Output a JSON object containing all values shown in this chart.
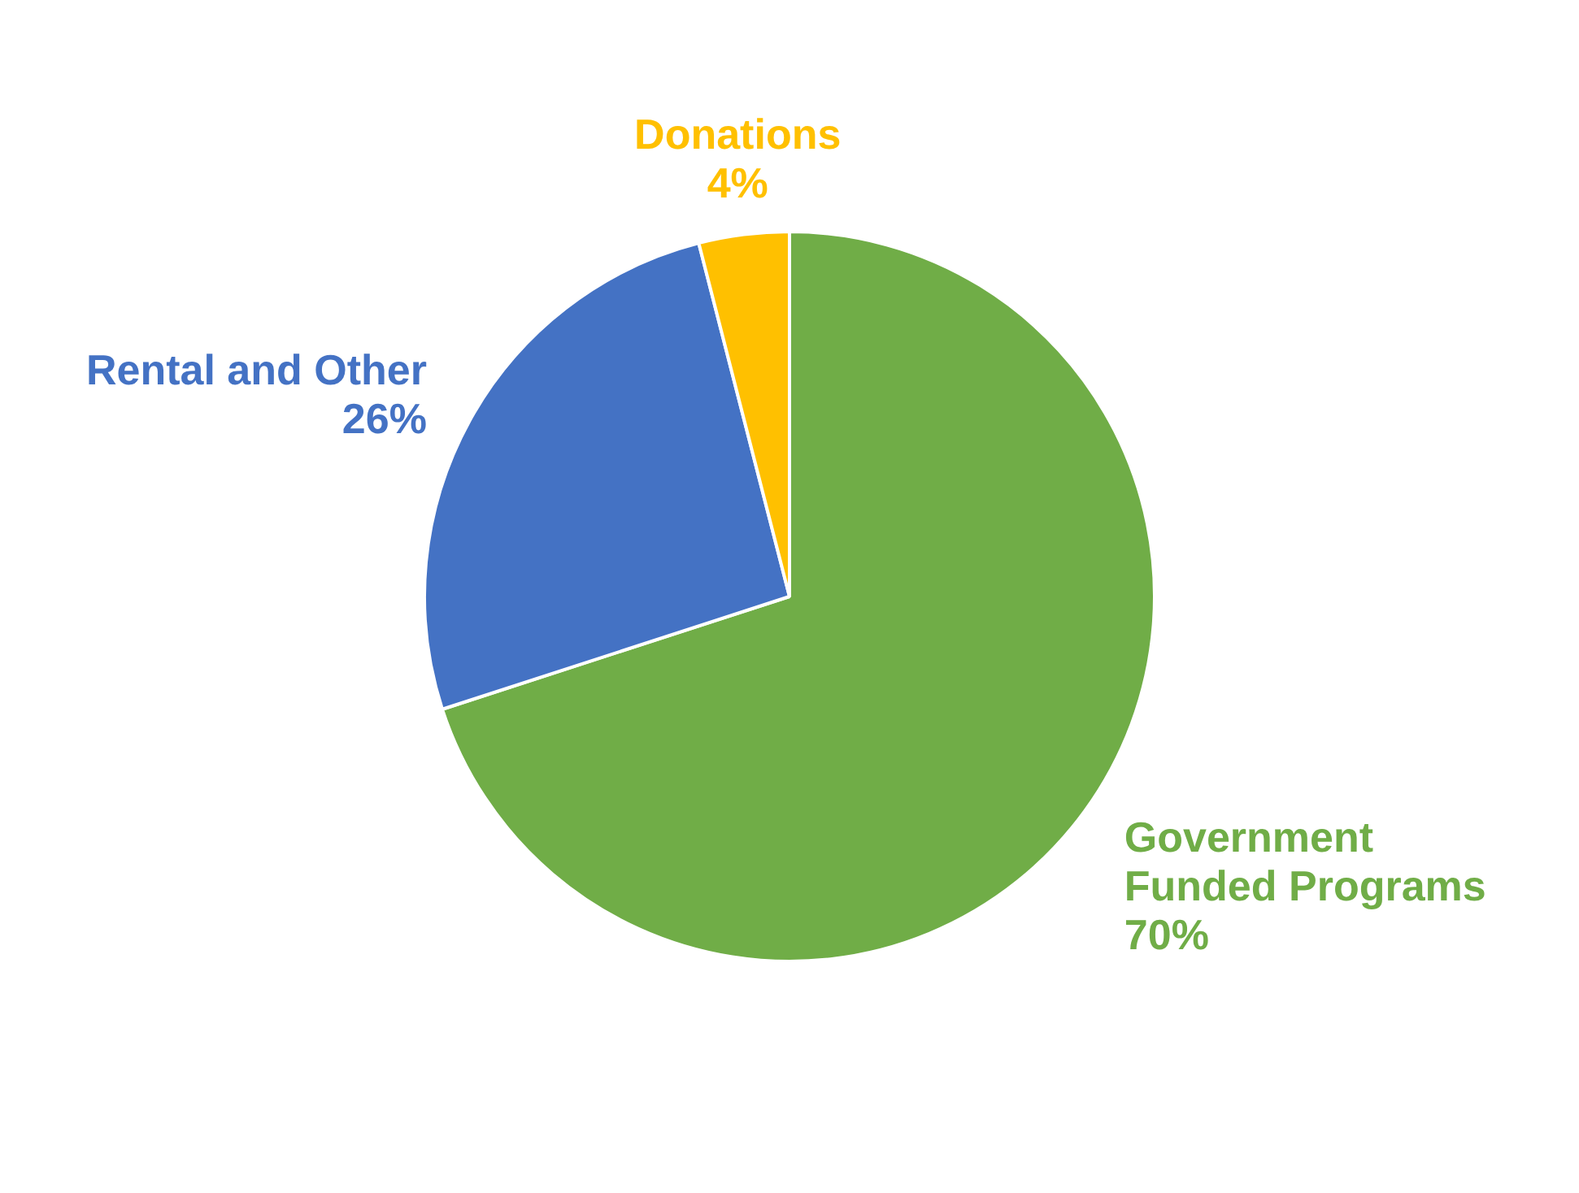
{
  "chart_data": {
    "type": "pie",
    "categories": [
      "Government Funded Programs",
      "Rental and Other",
      "Donations"
    ],
    "values": [
      70,
      26,
      4
    ],
    "colors": [
      "#70ad47",
      "#4472c4",
      "#ffc000"
    ],
    "value_labels": [
      "70%",
      "26%",
      "4%"
    ],
    "legend": false
  }
}
